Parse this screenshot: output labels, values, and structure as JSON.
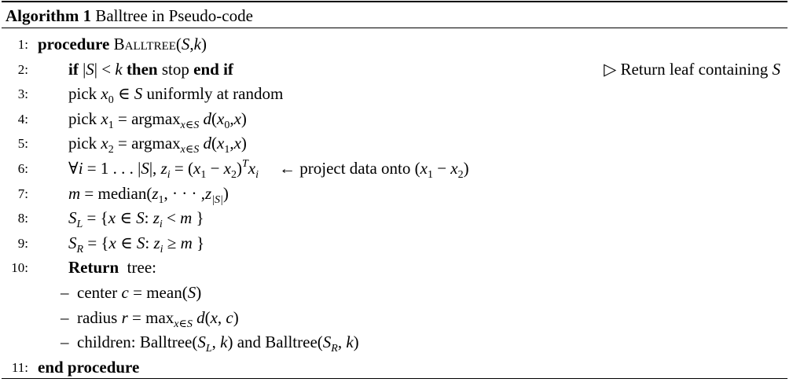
{
  "title": {
    "label": "Algorithm 1",
    "text": " Balltree in Pseudo-code"
  },
  "lines": [
    {
      "num": "1:",
      "indent": "l0",
      "segments": [
        [
          "b",
          "procedure"
        ],
        [
          "r",
          " "
        ],
        [
          "sc",
          "Balltree"
        ],
        [
          "r",
          "("
        ],
        [
          "i",
          "S"
        ],
        [
          "r",
          ","
        ],
        [
          "i",
          "k"
        ],
        [
          "r",
          ")"
        ]
      ]
    },
    {
      "num": "2:",
      "indent": "l1",
      "segments": [
        [
          "b",
          "if"
        ],
        [
          "r",
          " |"
        ],
        [
          "i",
          "S"
        ],
        [
          "r",
          "| < "
        ],
        [
          "i",
          "k"
        ],
        [
          "b",
          " then"
        ],
        [
          "r",
          " stop "
        ],
        [
          "b",
          "end if"
        ]
      ],
      "comment": [
        [
          "r",
          "▷ Return leaf containing "
        ],
        [
          "i",
          "S"
        ]
      ]
    },
    {
      "num": "3:",
      "indent": "l1",
      "segments": [
        [
          "r",
          "pick "
        ],
        [
          "i",
          "x"
        ],
        [
          "sub",
          "0"
        ],
        [
          "r",
          " ∈ "
        ],
        [
          "i",
          "S"
        ],
        [
          "r",
          " uniformly at random"
        ]
      ]
    },
    {
      "num": "4:",
      "indent": "l1",
      "segments": [
        [
          "r",
          "pick "
        ],
        [
          "i",
          "x"
        ],
        [
          "sub",
          "1"
        ],
        [
          "r",
          " = argmax"
        ],
        [
          "isub",
          "x∈S"
        ],
        [
          "r",
          " "
        ],
        [
          "i",
          "d"
        ],
        [
          "r",
          "("
        ],
        [
          "i",
          "x"
        ],
        [
          "sub",
          "0"
        ],
        [
          "r",
          ","
        ],
        [
          "i",
          "x"
        ],
        [
          "r",
          ")"
        ]
      ]
    },
    {
      "num": "5:",
      "indent": "l1",
      "segments": [
        [
          "r",
          "pick "
        ],
        [
          "i",
          "x"
        ],
        [
          "sub",
          "2"
        ],
        [
          "r",
          " = argmax"
        ],
        [
          "isub",
          "x∈S"
        ],
        [
          "r",
          " "
        ],
        [
          "i",
          "d"
        ],
        [
          "r",
          "("
        ],
        [
          "i",
          "x"
        ],
        [
          "sub",
          "1"
        ],
        [
          "r",
          ","
        ],
        [
          "i",
          "x"
        ],
        [
          "r",
          ")"
        ]
      ]
    },
    {
      "num": "6:",
      "indent": "l1",
      "segments": [
        [
          "r",
          "∀"
        ],
        [
          "i",
          "i"
        ],
        [
          "r",
          " = 1 . . . |"
        ],
        [
          "i",
          "S"
        ],
        [
          "r",
          "|, "
        ],
        [
          "i",
          "z"
        ],
        [
          "isub",
          "i"
        ],
        [
          "r",
          " = ("
        ],
        [
          "i",
          "x"
        ],
        [
          "sub",
          "1"
        ],
        [
          "r",
          " − "
        ],
        [
          "i",
          "x"
        ],
        [
          "sub",
          "2"
        ],
        [
          "r",
          ")"
        ],
        [
          "isup",
          "T"
        ],
        [
          "i",
          "x"
        ],
        [
          "isub",
          "i"
        ]
      ],
      "tail": [
        [
          "r",
          "← project data onto ("
        ],
        [
          "i",
          "x"
        ],
        [
          "sub",
          "1"
        ],
        [
          "r",
          " − "
        ],
        [
          "i",
          "x"
        ],
        [
          "sub",
          "2"
        ],
        [
          "r",
          ")"
        ]
      ]
    },
    {
      "num": "7:",
      "indent": "l1",
      "segments": [
        [
          "i",
          "m"
        ],
        [
          "r",
          " = median("
        ],
        [
          "i",
          "z"
        ],
        [
          "sub",
          "1"
        ],
        [
          "r",
          ", · · · ,"
        ],
        [
          "i",
          "z"
        ],
        [
          "isub",
          "|S|"
        ],
        [
          "r",
          ")"
        ]
      ]
    },
    {
      "num": "8:",
      "indent": "l1",
      "segments": [
        [
          "i",
          "S"
        ],
        [
          "isub",
          "L"
        ],
        [
          "r",
          " = {"
        ],
        [
          "i",
          "x"
        ],
        [
          "r",
          " ∈ "
        ],
        [
          "i",
          "S"
        ],
        [
          "r",
          ": "
        ],
        [
          "i",
          "z"
        ],
        [
          "isub",
          "i"
        ],
        [
          "r",
          " < "
        ],
        [
          "i",
          "m"
        ],
        [
          "r",
          " }"
        ]
      ]
    },
    {
      "num": "9:",
      "indent": "l1",
      "segments": [
        [
          "i",
          "S"
        ],
        [
          "isub",
          "R"
        ],
        [
          "r",
          " = {"
        ],
        [
          "i",
          "x"
        ],
        [
          "r",
          " ∈ "
        ],
        [
          "i",
          "S"
        ],
        [
          "r",
          ": "
        ],
        [
          "i",
          "z"
        ],
        [
          "isub",
          "i"
        ],
        [
          "r",
          " ≥ "
        ],
        [
          "i",
          "m"
        ],
        [
          "r",
          " }"
        ]
      ]
    },
    {
      "num": "10:",
      "indent": "l1",
      "segments": [
        [
          "b",
          "Return"
        ],
        [
          "r",
          "  tree:"
        ]
      ]
    },
    {
      "num": "",
      "indent": "lb",
      "segments": [
        [
          "r",
          "–  center "
        ],
        [
          "i",
          "c"
        ],
        [
          "r",
          " = mean("
        ],
        [
          "i",
          "S"
        ],
        [
          "r",
          ")"
        ]
      ]
    },
    {
      "num": "",
      "indent": "lb",
      "segments": [
        [
          "r",
          "–  radius "
        ],
        [
          "i",
          "r"
        ],
        [
          "r",
          " = max"
        ],
        [
          "isub",
          "x∈S"
        ],
        [
          "r",
          " "
        ],
        [
          "i",
          "d"
        ],
        [
          "r",
          "("
        ],
        [
          "i",
          "x"
        ],
        [
          "r",
          ", "
        ],
        [
          "i",
          "c"
        ],
        [
          "r",
          ")"
        ]
      ]
    },
    {
      "num": "",
      "indent": "lb",
      "segments": [
        [
          "r",
          "–  children: Balltree("
        ],
        [
          "i",
          "S"
        ],
        [
          "isub",
          "L"
        ],
        [
          "r",
          ", "
        ],
        [
          "i",
          "k"
        ],
        [
          "r",
          ") and Balltree("
        ],
        [
          "i",
          "S"
        ],
        [
          "isub",
          "R"
        ],
        [
          "r",
          ", "
        ],
        [
          "i",
          "k"
        ],
        [
          "r",
          ")"
        ]
      ]
    },
    {
      "num": "11:",
      "indent": "l0",
      "segments": [
        [
          "b",
          "end procedure"
        ]
      ]
    }
  ]
}
